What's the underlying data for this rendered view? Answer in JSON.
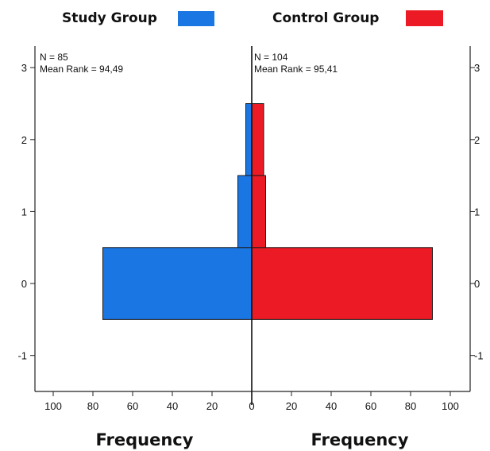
{
  "chart_data": {
    "type": "bar",
    "orientation": "horizontal",
    "layout": "back-to-back",
    "categories": [
      "3",
      "2",
      "1",
      "0",
      "-1"
    ],
    "ylim": [
      -1.5,
      3.3
    ],
    "x_ticks": [
      "100",
      "80",
      "60",
      "40",
      "20",
      "0",
      "20",
      "40",
      "60",
      "80",
      "100"
    ],
    "xlim": [
      0,
      100
    ],
    "xlabel_left": "Frequency",
    "xlabel_right": "Frequency",
    "series": [
      {
        "name": "Study Group",
        "side": "left",
        "color": "#1a76e3",
        "bins": [
          {
            "value": 0,
            "frequency": 75
          },
          {
            "value": 1,
            "frequency": 7
          },
          {
            "value": 2,
            "frequency": 3
          },
          {
            "value": 3,
            "frequency": 0
          }
        ],
        "stats": {
          "n": "N = 85",
          "mean_rank": "Mean Rank = 94,49"
        }
      },
      {
        "name": "Control Group",
        "side": "right",
        "color": "#ec1a24",
        "bins": [
          {
            "value": 0,
            "frequency": 91
          },
          {
            "value": 1,
            "frequency": 7
          },
          {
            "value": 2,
            "frequency": 6
          },
          {
            "value": 3,
            "frequency": 0
          }
        ],
        "stats": {
          "n": "N = 104",
          "mean_rank": "Mean Rank = 95,41"
        }
      }
    ],
    "grid": false,
    "legend_position": "top"
  }
}
